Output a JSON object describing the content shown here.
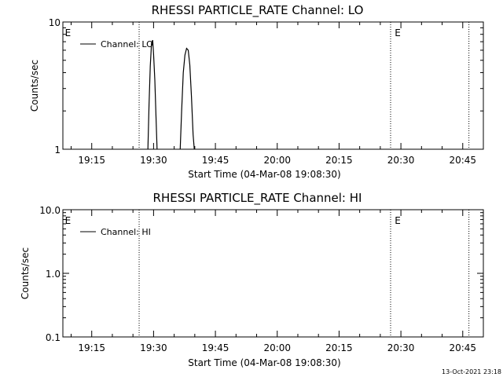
{
  "chart_data": [
    {
      "type": "line",
      "title": "RHESSI PARTICLE_RATE Channel: LO",
      "xlabel": "Start Time (04-Mar-08 19:08:30)",
      "ylabel": "Counts/sec",
      "yscale": "log",
      "ylim": [
        1,
        10
      ],
      "xlim_minutes": [
        0,
        102
      ],
      "x_ticks": [
        {
          "minutes": 7,
          "label": "19:15"
        },
        {
          "minutes": 22,
          "label": "19:30"
        },
        {
          "minutes": 37,
          "label": "19:45"
        },
        {
          "minutes": 52,
          "label": "20:00"
        },
        {
          "minutes": 67,
          "label": "20:15"
        },
        {
          "minutes": 82,
          "label": "20:30"
        },
        {
          "minutes": 97,
          "label": "20:45"
        }
      ],
      "y_ticks": [
        {
          "value": 1,
          "label": "1"
        },
        {
          "value": 10,
          "label": "10"
        }
      ],
      "legend": {
        "position": "top-left",
        "entries": [
          "Channel: LO"
        ]
      },
      "vlines_minutes": [
        18.5,
        79.5,
        98.5
      ],
      "event_marks": [
        {
          "minutes": 0.5,
          "label": "E"
        },
        {
          "minutes": 80.5,
          "label": "E"
        }
      ],
      "series": [
        {
          "name": "Channel: LO",
          "segments": [
            [
              [
                20.6,
                0.9
              ],
              [
                20.9,
                2.2
              ],
              [
                21.2,
                4.5
              ],
              [
                21.5,
                6.8
              ],
              [
                21.8,
                7.2
              ],
              [
                22.0,
                5.6
              ],
              [
                22.3,
                3.5
              ],
              [
                22.6,
                1.8
              ],
              [
                22.9,
                0.9
              ]
            ],
            [
              [
                28.4,
                0.9
              ],
              [
                28.8,
                2.0
              ],
              [
                29.2,
                4.0
              ],
              [
                29.6,
                5.5
              ],
              [
                30.0,
                6.2
              ],
              [
                30.4,
                6.0
              ],
              [
                30.8,
                4.6
              ],
              [
                31.2,
                2.6
              ],
              [
                31.6,
                1.3
              ],
              [
                32.0,
                0.9
              ]
            ]
          ]
        }
      ]
    },
    {
      "type": "line",
      "title": "RHESSI PARTICLE_RATE Channel: HI",
      "xlabel": "Start Time (04-Mar-08 19:08:30)",
      "ylabel": "Counts/sec",
      "yscale": "log",
      "ylim": [
        0.1,
        10
      ],
      "xlim_minutes": [
        0,
        102
      ],
      "x_ticks": [
        {
          "minutes": 7,
          "label": "19:15"
        },
        {
          "minutes": 22,
          "label": "19:30"
        },
        {
          "minutes": 37,
          "label": "19:45"
        },
        {
          "minutes": 52,
          "label": "20:00"
        },
        {
          "minutes": 67,
          "label": "20:15"
        },
        {
          "minutes": 82,
          "label": "20:30"
        },
        {
          "minutes": 97,
          "label": "20:45"
        }
      ],
      "y_ticks": [
        {
          "value": 0.1,
          "label": "0.1"
        },
        {
          "value": 1,
          "label": "1.0"
        },
        {
          "value": 10,
          "label": "10.0"
        }
      ],
      "legend": {
        "position": "top-left",
        "entries": [
          "Channel: HI"
        ]
      },
      "vlines_minutes": [
        18.5,
        79.5,
        98.5
      ],
      "event_marks": [
        {
          "minutes": 0.5,
          "label": "E"
        },
        {
          "minutes": 80.5,
          "label": "E"
        }
      ],
      "series": [
        {
          "name": "Channel: HI",
          "segments": []
        }
      ]
    }
  ],
  "footer": {
    "timestamp": "13-Oct-2021 23:18"
  }
}
